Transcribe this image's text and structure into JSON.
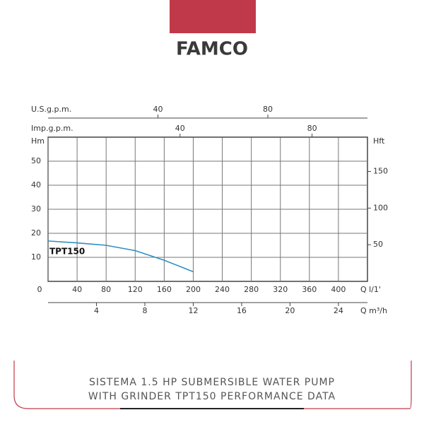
{
  "brand": "FAMCO",
  "caption": [
    "SISTEMA 1.5 HP SUBMERSIBLE WATER PUMP",
    "WITH GRINDER TPT150 PERFORMANCE DATA"
  ],
  "chart_data": {
    "type": "line",
    "x": [
      0,
      40,
      80,
      120,
      160,
      200
    ],
    "series": [
      {
        "name": "TPT150",
        "color": "#2f8fc4",
        "values": [
          16.8,
          16,
          15,
          12.8,
          8.8,
          4
        ]
      }
    ],
    "xlabel": "Q l/1'",
    "xlim": [
      0,
      440
    ],
    "xticks": [
      0,
      40,
      80,
      120,
      160,
      200,
      240,
      280,
      320,
      360,
      400
    ],
    "ylabel": "Hm",
    "ylim": [
      0,
      60
    ],
    "yticks": [
      10,
      20,
      30,
      40,
      50
    ],
    "y2label": "Hft",
    "y2lim": [
      0,
      196.85
    ],
    "y2ticks": [
      50,
      100,
      150
    ],
    "top_axes": [
      {
        "label": "U.S.g.p.m.",
        "lim": [
          0,
          116.25
        ],
        "ticks": [
          40,
          80
        ]
      },
      {
        "label": "Imp.g.p.m.",
        "lim": [
          0,
          96.79
        ],
        "ticks": [
          40,
          80
        ]
      }
    ],
    "bottom_axis2": {
      "label": "Q m³/h",
      "lim": [
        0,
        26.4
      ],
      "ticks": [
        4,
        8,
        12,
        16,
        20,
        24
      ]
    },
    "grid": true
  }
}
